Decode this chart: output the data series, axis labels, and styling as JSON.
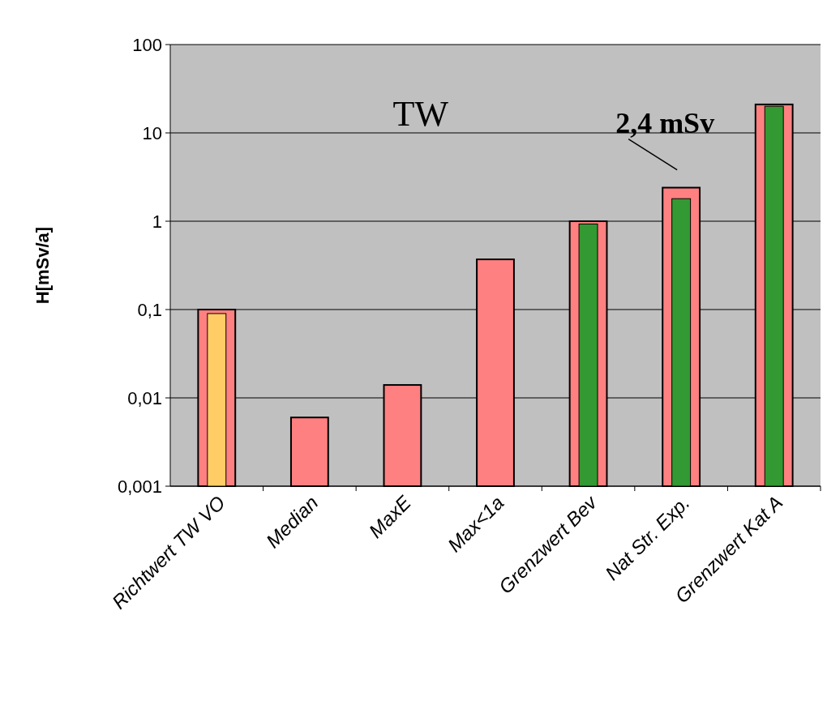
{
  "chart_data": {
    "type": "bar",
    "ylabel": "H[mSv/a]",
    "log": true,
    "grid": "y",
    "categories": [
      "Richtwert TW VO",
      "Median",
      "MaxE",
      "Max<1a",
      "Grenzwert Bev",
      "Nat Str. Exp.",
      "Grenzwert Kat A"
    ],
    "ylim": [
      0.001,
      100
    ],
    "yticks": [
      {
        "value": 0.001,
        "label": "0,001"
      },
      {
        "value": 0.01,
        "label": "0,01"
      },
      {
        "value": 0.1,
        "label": "0,1"
      },
      1,
      10,
      100
    ],
    "series": [
      {
        "color": "#ff8080",
        "values": [
          0.1,
          0.006,
          0.014,
          0.37,
          1.0,
          2.4,
          21
        ]
      },
      {
        "colors": [
          "#ffcc66",
          null,
          null,
          null,
          "#339933",
          "#339933",
          "#339933"
        ],
        "values": [
          0.09,
          null,
          null,
          null,
          0.93,
          1.8,
          20
        ]
      }
    ],
    "annotations": [
      "TW",
      {
        "text": "2,4 mSv",
        "x": "Nat Str. Exp.",
        "y": 2.4
      }
    ]
  }
}
